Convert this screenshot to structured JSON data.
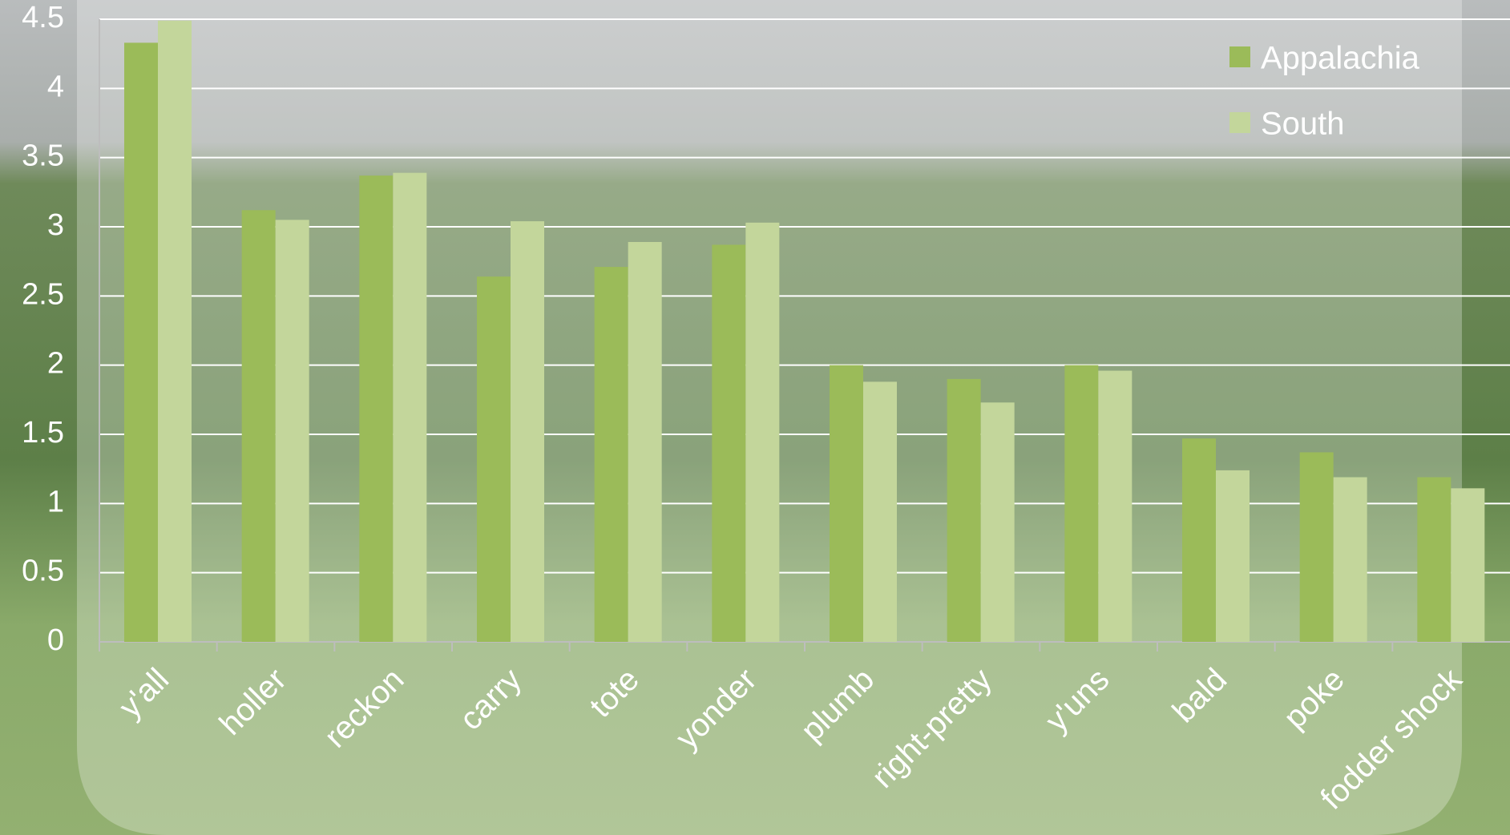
{
  "chart_data": {
    "type": "bar",
    "categories": [
      "y'all",
      "holler",
      "reckon",
      "carry",
      "tote",
      "yonder",
      "plumb",
      "right-pretty",
      "y'uns",
      "bald",
      "poke",
      "fodder shock"
    ],
    "series": [
      {
        "name": "Appalachia",
        "color": "#9bbb59",
        "values": [
          4.33,
          3.12,
          3.37,
          2.64,
          2.71,
          2.87,
          2.0,
          1.9,
          2.0,
          1.47,
          1.37,
          1.19
        ]
      },
      {
        "name": "South",
        "color": "#c3d69b",
        "values": [
          4.49,
          3.05,
          3.39,
          3.04,
          2.89,
          3.03,
          1.88,
          1.73,
          1.96,
          1.24,
          1.19,
          1.11
        ]
      }
    ],
    "ylim": [
      0,
      4.5
    ],
    "yticks": [
      0,
      0.5,
      1,
      1.5,
      2,
      2.5,
      3,
      3.5,
      4,
      4.5
    ],
    "grid": true,
    "legend": "upper right"
  }
}
